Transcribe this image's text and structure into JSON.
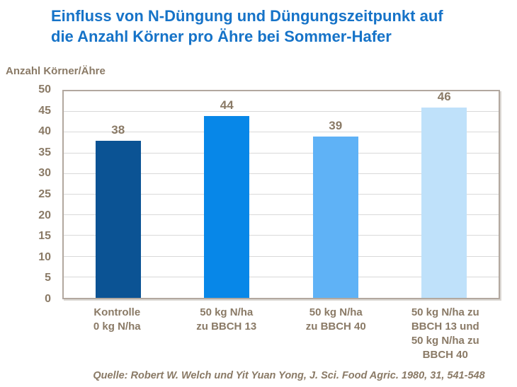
{
  "title": "Einfluss von N-Düngung und Düngungszeitpunkt  auf\ndie Anzahl Körner pro Ähre bei Sommer-Hafer",
  "source": "Quelle: Robert W. Welch und Yit Yuan Yong, J. Sci. Food Agric. 1980, 31, 541-548",
  "colors": {
    "title_text": "#1673c8",
    "axis_text": "#8a7a66",
    "plot_border": "#b2a89f",
    "gridline": "#d9d9d9",
    "bar_colors": [
      "#0b5394",
      "#0787e8",
      "#5fb2f6",
      "#bfe1fa"
    ]
  },
  "chart_data": {
    "type": "bar",
    "title": "Einfluss von N-Düngung und Düngungszeitpunkt auf die Anzahl Körner pro Ähre bei Sommer-Hafer",
    "ylabel": "Anzahl Körner/Ähre",
    "xlabel": "",
    "categories": [
      "Kontrolle\n0 kg N/ha",
      "50 kg N/ha\nzu BBCH 13",
      "50 kg N/ha\nzu BBCH 40",
      "50 kg N/ha zu\nBBCH 13 und\n50 kg N/ha zu\nBBCH 40"
    ],
    "values": [
      38,
      44,
      39,
      46
    ],
    "ylim": [
      0,
      50
    ],
    "ytick_step": 5,
    "grid": true,
    "legend_position": "none"
  }
}
